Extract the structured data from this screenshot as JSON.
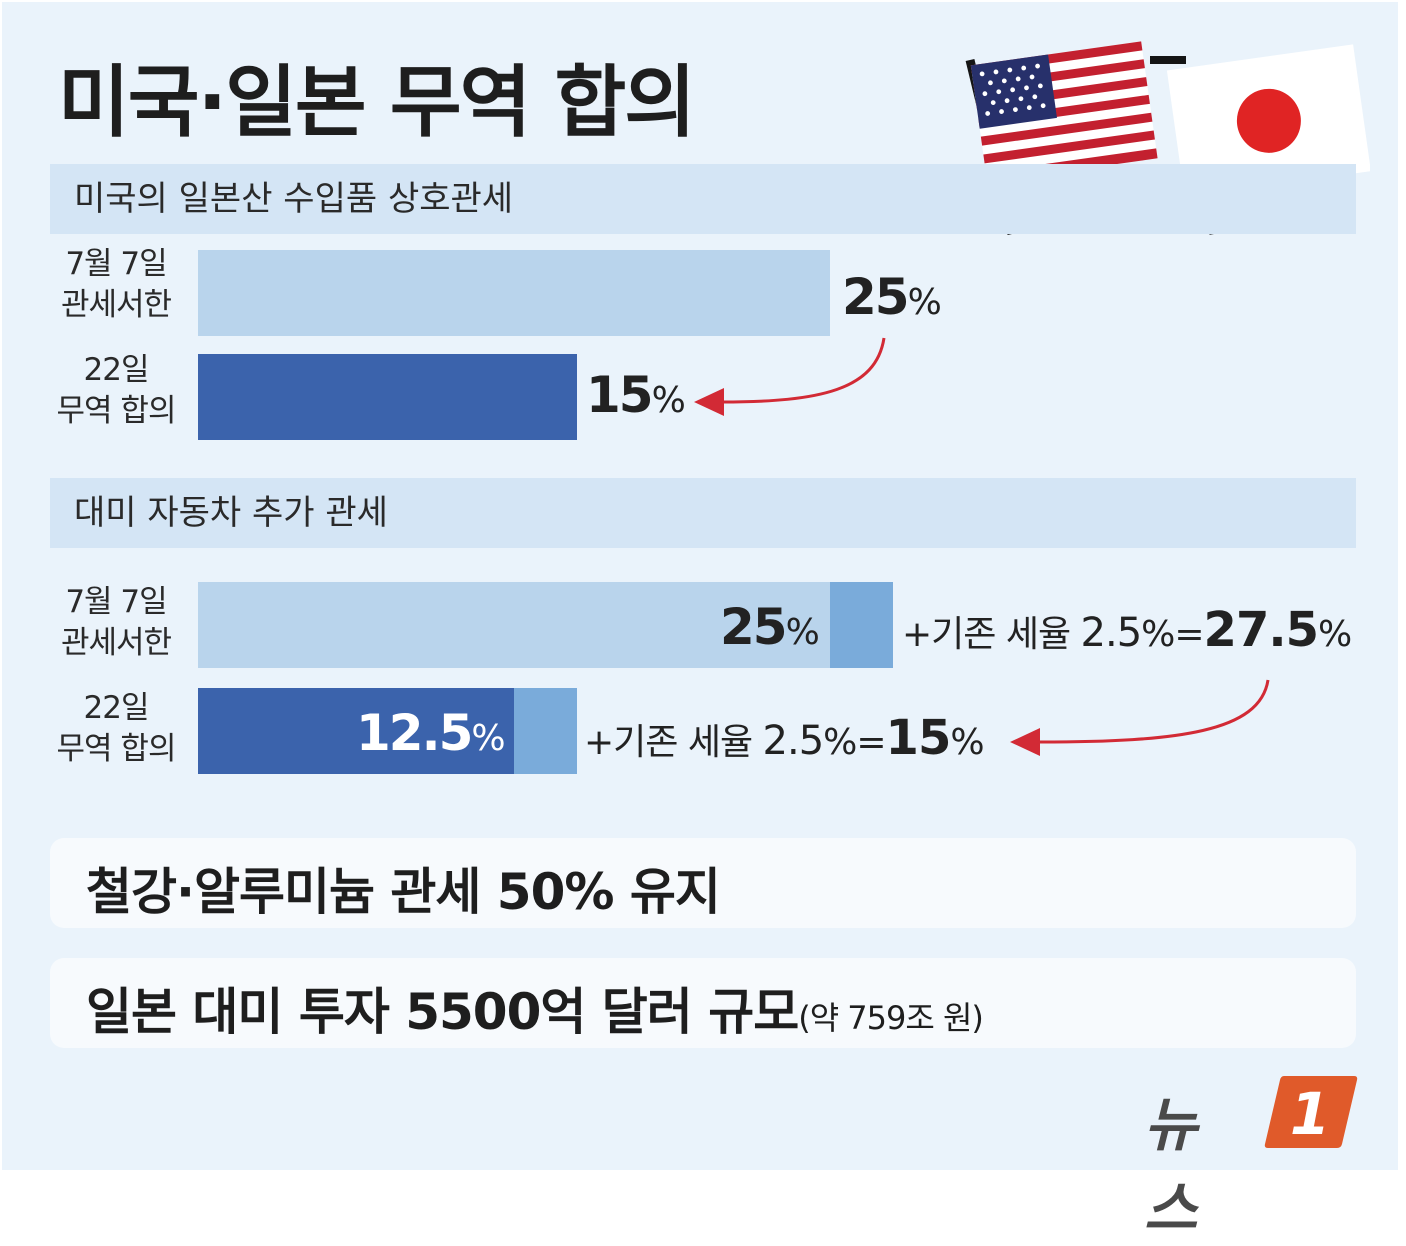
{
  "title": "미국·일본 무역 합의",
  "colors": {
    "background": "#eaf3fb",
    "section_band": "#d4e5f5",
    "bar_before": "#b9d4ec",
    "bar_after": "#3b63ac",
    "bar_base": "#7aabda",
    "arrow": "#d22a35",
    "logo_accent": "#e05a2a"
  },
  "flags": [
    "us-flag",
    "japan-flag"
  ],
  "sections": [
    {
      "header": "미국의 일본산 수입품 상호관세",
      "rows": [
        {
          "label_line1": "7월 7일",
          "label_line2": "관세서한",
          "value_num": "25",
          "value_unit": "%"
        },
        {
          "label_line1": "22일",
          "label_line2": "무역 합의",
          "value_num": "15",
          "value_unit": "%"
        }
      ]
    },
    {
      "header": "대미 자동차 추가 관세",
      "rows": [
        {
          "label_line1": "7월 7일",
          "label_line2": "관세서한",
          "value_num": "25",
          "value_unit": "%",
          "note_prefix": "+기존 세율 ",
          "note_base_num": "2.5",
          "note_base_unit": "%",
          "note_eq": "=",
          "note_total_num": "27.5",
          "note_total_unit": "%"
        },
        {
          "label_line1": "22일",
          "label_line2": "무역 합의",
          "value_num": "12.5",
          "value_unit": "%",
          "note_prefix": "+기존 세율 ",
          "note_base_num": "2.5",
          "note_base_unit": "%",
          "note_eq": "=",
          "note_total_num": "15",
          "note_total_unit": "%"
        }
      ]
    }
  ],
  "boxes": [
    {
      "text": "철강·알루미늄 관세 50% 유지",
      "small": ""
    },
    {
      "text": "일본 대미 투자 5500억 달러 규모",
      "small": "(약 759조 원)"
    }
  ],
  "logo": {
    "text": "뉴스",
    "mark": "1"
  },
  "chart_data": [
    {
      "type": "bar",
      "title": "미국의 일본산 수입품 상호관세",
      "categories": [
        "7월 7일 관세서한",
        "22일 무역 합의"
      ],
      "values": [
        25,
        15
      ],
      "unit": "%"
    },
    {
      "type": "bar",
      "title": "대미 자동차 추가 관세",
      "categories": [
        "7월 7일 관세서한",
        "22일 무역 합의"
      ],
      "series": [
        {
          "values": [
            25,
            12.5
          ]
        },
        {
          "values": [
            2.5,
            2.5
          ]
        }
      ],
      "totals": [
        27.5,
        15
      ],
      "unit": "%",
      "stacked": true
    }
  ]
}
